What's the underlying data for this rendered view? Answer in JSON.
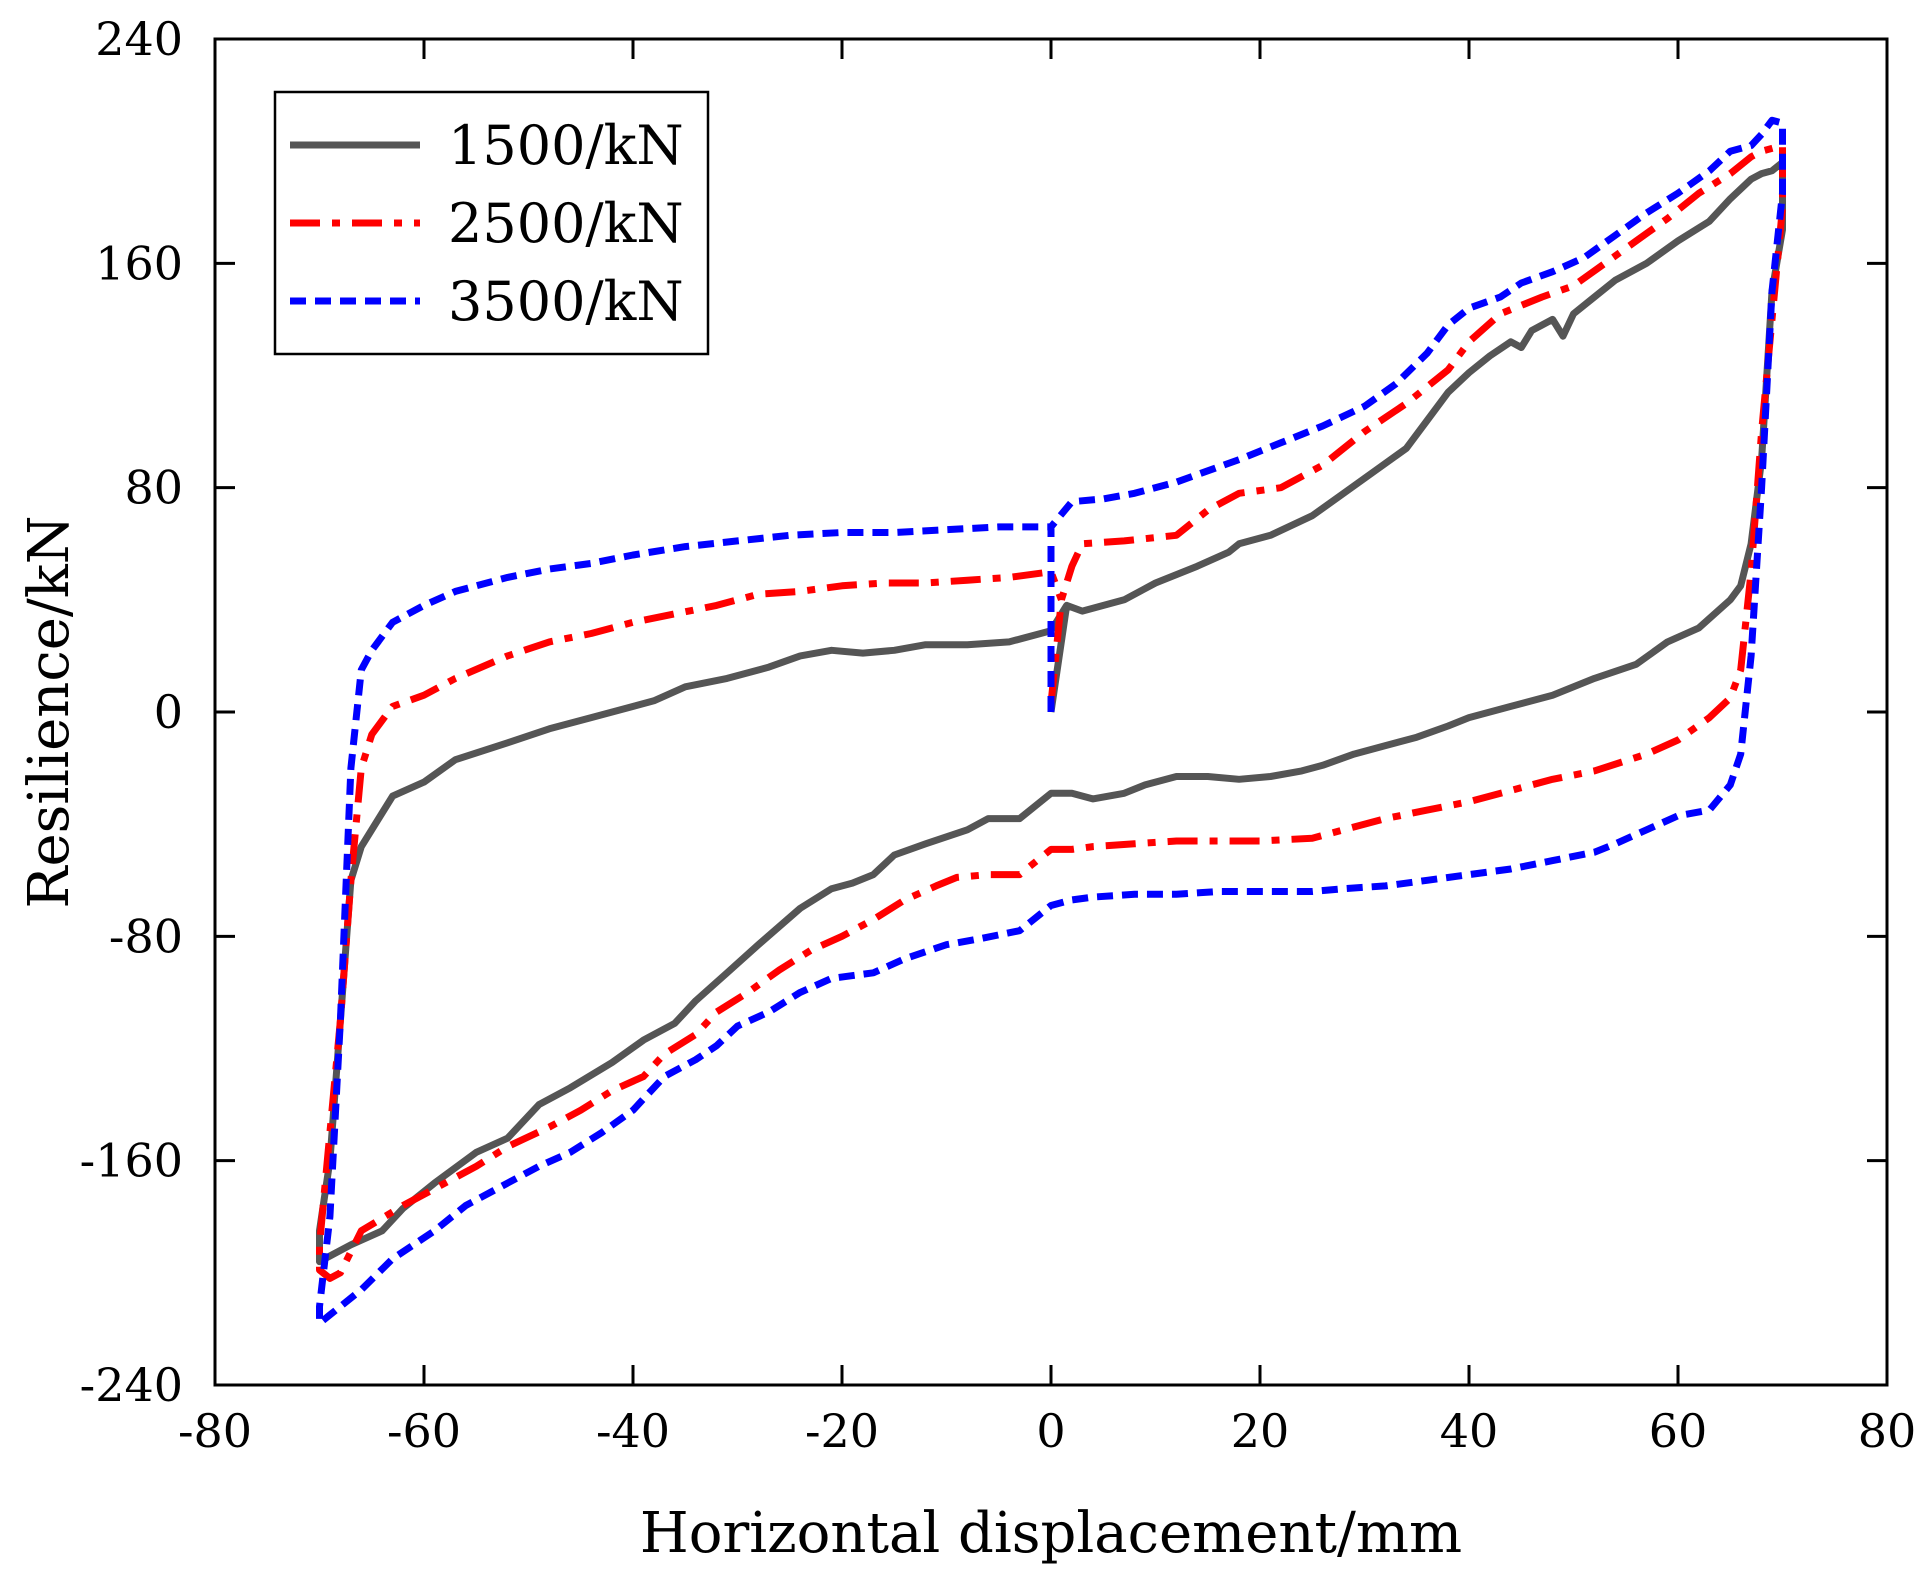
{
  "chart_data": {
    "type": "line",
    "title": "",
    "xlabel": "Horizontal displacement/mm",
    "ylabel": "Resilience/kN",
    "xlim": [
      -80,
      80
    ],
    "ylim": [
      -240,
      240
    ],
    "xticks": [
      -80,
      -60,
      -40,
      -20,
      0,
      20,
      40,
      60,
      80
    ],
    "yticks": [
      -240,
      -160,
      -80,
      0,
      80,
      160,
      240
    ],
    "grid": false,
    "legend_position": "top-left",
    "series": [
      {
        "name": "1500/kN",
        "color": "#555555",
        "dash": "solid",
        "points": [
          [
            0,
            0
          ],
          [
            1.5,
            38
          ],
          [
            3,
            36
          ],
          [
            7,
            40
          ],
          [
            10,
            46
          ],
          [
            14,
            52
          ],
          [
            17,
            57
          ],
          [
            18,
            60
          ],
          [
            21,
            63
          ],
          [
            25,
            70
          ],
          [
            28,
            78
          ],
          [
            31,
            86
          ],
          [
            34,
            94
          ],
          [
            36,
            104
          ],
          [
            38,
            114
          ],
          [
            40,
            121
          ],
          [
            42,
            127
          ],
          [
            44,
            132
          ],
          [
            45,
            130
          ],
          [
            46,
            136
          ],
          [
            47,
            138
          ],
          [
            48,
            140
          ],
          [
            49,
            134
          ],
          [
            50,
            142
          ],
          [
            52,
            148
          ],
          [
            54,
            154
          ],
          [
            57,
            160
          ],
          [
            60,
            168
          ],
          [
            63,
            175
          ],
          [
            65,
            183
          ],
          [
            67,
            190
          ],
          [
            68,
            192
          ],
          [
            69,
            193
          ],
          [
            70,
            196
          ],
          [
            70,
            172
          ],
          [
            69,
            150
          ],
          [
            68,
            90
          ],
          [
            67,
            60
          ],
          [
            66,
            45
          ],
          [
            65,
            40
          ],
          [
            62,
            30
          ],
          [
            59,
            25
          ],
          [
            56,
            17
          ],
          [
            52,
            12
          ],
          [
            48,
            6
          ],
          [
            44,
            2
          ],
          [
            40,
            -2
          ],
          [
            38,
            -5
          ],
          [
            35,
            -9
          ],
          [
            32,
            -12
          ],
          [
            29,
            -15
          ],
          [
            26,
            -19
          ],
          [
            24,
            -21
          ],
          [
            21,
            -23
          ],
          [
            18,
            -24
          ],
          [
            15,
            -23
          ],
          [
            12,
            -23
          ],
          [
            9,
            -26
          ],
          [
            7,
            -29
          ],
          [
            4,
            -31
          ],
          [
            2,
            -29
          ],
          [
            0,
            -29
          ],
          [
            -3,
            -38
          ],
          [
            -6,
            -38
          ],
          [
            -8,
            -42
          ],
          [
            -12,
            -47
          ],
          [
            -15,
            -51
          ],
          [
            -17,
            -58
          ],
          [
            -19,
            -61
          ],
          [
            -21,
            -63
          ],
          [
            -24,
            -70
          ],
          [
            -28,
            -83
          ],
          [
            -31,
            -93
          ],
          [
            -34,
            -103
          ],
          [
            -36,
            -111
          ],
          [
            -39,
            -117
          ],
          [
            -42,
            -125
          ],
          [
            -46,
            -134
          ],
          [
            -49,
            -140
          ],
          [
            -52,
            -152
          ],
          [
            -55,
            -157
          ],
          [
            -59,
            -168
          ],
          [
            -62,
            -177
          ],
          [
            -64,
            -185
          ],
          [
            -67,
            -190
          ],
          [
            -69,
            -194
          ],
          [
            -70,
            -196
          ],
          [
            -70,
            -185
          ],
          [
            -69,
            -160
          ],
          [
            -68,
            -110
          ],
          [
            -67,
            -60
          ],
          [
            -66,
            -48
          ],
          [
            -63,
            -30
          ],
          [
            -60,
            -25
          ],
          [
            -57,
            -17
          ],
          [
            -52,
            -11
          ],
          [
            -48,
            -6
          ],
          [
            -44,
            -2
          ],
          [
            -38,
            4
          ],
          [
            -35,
            9
          ],
          [
            -31,
            12
          ],
          [
            -27,
            16
          ],
          [
            -24,
            20
          ],
          [
            -21,
            22
          ],
          [
            -18,
            21
          ],
          [
            -15,
            22
          ],
          [
            -12,
            24
          ],
          [
            -8,
            24
          ],
          [
            -4,
            25
          ],
          [
            0,
            29
          ],
          [
            1.5,
            38
          ]
        ]
      },
      {
        "name": "2500/kN",
        "color": "#ff0000",
        "dash": "dashdot",
        "points": [
          [
            0,
            3
          ],
          [
            1,
            40
          ],
          [
            2,
            52
          ],
          [
            3,
            60
          ],
          [
            7,
            61
          ],
          [
            12,
            63
          ],
          [
            15,
            72
          ],
          [
            18,
            78
          ],
          [
            22,
            80
          ],
          [
            26,
            88
          ],
          [
            30,
            100
          ],
          [
            34,
            110
          ],
          [
            38,
            122
          ],
          [
            40,
            132
          ],
          [
            43,
            142
          ],
          [
            47,
            148
          ],
          [
            50,
            152
          ],
          [
            53,
            160
          ],
          [
            56,
            168
          ],
          [
            59,
            176
          ],
          [
            62,
            185
          ],
          [
            65,
            192
          ],
          [
            67,
            198
          ],
          [
            68,
            200
          ],
          [
            70,
            202
          ],
          [
            70,
            180
          ],
          [
            69,
            140
          ],
          [
            68,
            100
          ],
          [
            67,
            50
          ],
          [
            66,
            15
          ],
          [
            65,
            5
          ],
          [
            63,
            -2
          ],
          [
            60,
            -10
          ],
          [
            57,
            -15
          ],
          [
            52,
            -21
          ],
          [
            48,
            -24
          ],
          [
            44,
            -28
          ],
          [
            40,
            -32
          ],
          [
            36,
            -35
          ],
          [
            32,
            -38
          ],
          [
            28,
            -42
          ],
          [
            25,
            -45
          ],
          [
            20,
            -46
          ],
          [
            16,
            -46
          ],
          [
            12,
            -46
          ],
          [
            8,
            -47
          ],
          [
            4,
            -48
          ],
          [
            2,
            -49
          ],
          [
            0,
            -49
          ],
          [
            -3,
            -58
          ],
          [
            -6,
            -58
          ],
          [
            -9,
            -59
          ],
          [
            -11,
            -62
          ],
          [
            -14,
            -67
          ],
          [
            -17,
            -74
          ],
          [
            -20,
            -80
          ],
          [
            -23,
            -85
          ],
          [
            -26,
            -92
          ],
          [
            -29,
            -100
          ],
          [
            -32,
            -107
          ],
          [
            -34,
            -115
          ],
          [
            -37,
            -122
          ],
          [
            -39,
            -130
          ],
          [
            -42,
            -135
          ],
          [
            -45,
            -142
          ],
          [
            -48,
            -148
          ],
          [
            -52,
            -155
          ],
          [
            -55,
            -162
          ],
          [
            -59,
            -170
          ],
          [
            -62,
            -176
          ],
          [
            -66,
            -185
          ],
          [
            -68,
            -200
          ],
          [
            -69,
            -202
          ],
          [
            -70,
            -199
          ],
          [
            -70,
            -190
          ],
          [
            -69,
            -150
          ],
          [
            -68,
            -110
          ],
          [
            -67,
            -60
          ],
          [
            -66,
            -20
          ],
          [
            -65,
            -8
          ],
          [
            -63,
            2
          ],
          [
            -60,
            6
          ],
          [
            -57,
            12
          ],
          [
            -52,
            20
          ],
          [
            -48,
            25
          ],
          [
            -44,
            28
          ],
          [
            -40,
            32
          ],
          [
            -36,
            35
          ],
          [
            -32,
            38
          ],
          [
            -28,
            42
          ],
          [
            -24,
            43
          ],
          [
            -20,
            45
          ],
          [
            -16,
            46
          ],
          [
            -12,
            46
          ],
          [
            -8,
            47
          ],
          [
            -4,
            48
          ],
          [
            0,
            50
          ],
          [
            1,
            40
          ]
        ]
      },
      {
        "name": "3500/kN",
        "color": "#0000ff",
        "dash": "dashed",
        "points": [
          [
            0,
            0
          ],
          [
            0,
            66
          ],
          [
            2,
            75
          ],
          [
            5,
            76
          ],
          [
            8,
            78
          ],
          [
            12,
            82
          ],
          [
            15,
            86
          ],
          [
            18,
            90
          ],
          [
            22,
            96
          ],
          [
            26,
            102
          ],
          [
            30,
            109
          ],
          [
            33,
            117
          ],
          [
            36,
            128
          ],
          [
            38,
            138
          ],
          [
            40,
            144
          ],
          [
            43,
            148
          ],
          [
            45,
            153
          ],
          [
            48,
            157
          ],
          [
            51,
            162
          ],
          [
            54,
            170
          ],
          [
            57,
            178
          ],
          [
            60,
            185
          ],
          [
            63,
            193
          ],
          [
            65,
            200
          ],
          [
            67,
            202
          ],
          [
            68,
            206
          ],
          [
            69,
            211
          ],
          [
            70,
            210
          ],
          [
            70,
            185
          ],
          [
            69,
            150
          ],
          [
            68,
            80
          ],
          [
            67,
            20
          ],
          [
            66,
            -15
          ],
          [
            65,
            -26
          ],
          [
            63,
            -35
          ],
          [
            60,
            -37
          ],
          [
            57,
            -42
          ],
          [
            54,
            -47
          ],
          [
            52,
            -50
          ],
          [
            48,
            -53
          ],
          [
            44,
            -56
          ],
          [
            40,
            -58
          ],
          [
            36,
            -60
          ],
          [
            32,
            -62
          ],
          [
            28,
            -63
          ],
          [
            25,
            -64
          ],
          [
            20,
            -64
          ],
          [
            16,
            -64
          ],
          [
            12,
            -65
          ],
          [
            8,
            -65
          ],
          [
            4,
            -66
          ],
          [
            2,
            -67
          ],
          [
            0,
            -69
          ],
          [
            -3,
            -78
          ],
          [
            -7,
            -81
          ],
          [
            -10,
            -83
          ],
          [
            -14,
            -88
          ],
          [
            -17,
            -93
          ],
          [
            -21,
            -95
          ],
          [
            -24,
            -100
          ],
          [
            -27,
            -107
          ],
          [
            -30,
            -112
          ],
          [
            -32,
            -119
          ],
          [
            -34,
            -124
          ],
          [
            -37,
            -130
          ],
          [
            -40,
            -142
          ],
          [
            -43,
            -150
          ],
          [
            -46,
            -157
          ],
          [
            -49,
            -162
          ],
          [
            -52,
            -168
          ],
          [
            -56,
            -176
          ],
          [
            -59,
            -185
          ],
          [
            -63,
            -195
          ],
          [
            -66,
            -206
          ],
          [
            -68,
            -212
          ],
          [
            -69,
            -215
          ],
          [
            -70,
            -218
          ],
          [
            -70,
            -212
          ],
          [
            -69,
            -180
          ],
          [
            -68,
            -110
          ],
          [
            -67,
            -20
          ],
          [
            -66,
            15
          ],
          [
            -65,
            22
          ],
          [
            -63,
            32
          ],
          [
            -60,
            38
          ],
          [
            -57,
            43
          ],
          [
            -52,
            48
          ],
          [
            -48,
            51
          ],
          [
            -44,
            53
          ],
          [
            -40,
            56
          ],
          [
            -35,
            59
          ],
          [
            -30,
            61
          ],
          [
            -25,
            63
          ],
          [
            -20,
            64
          ],
          [
            -15,
            64
          ],
          [
            -10,
            65
          ],
          [
            -5,
            66
          ],
          [
            -2,
            66
          ],
          [
            0,
            66
          ]
        ]
      }
    ]
  }
}
